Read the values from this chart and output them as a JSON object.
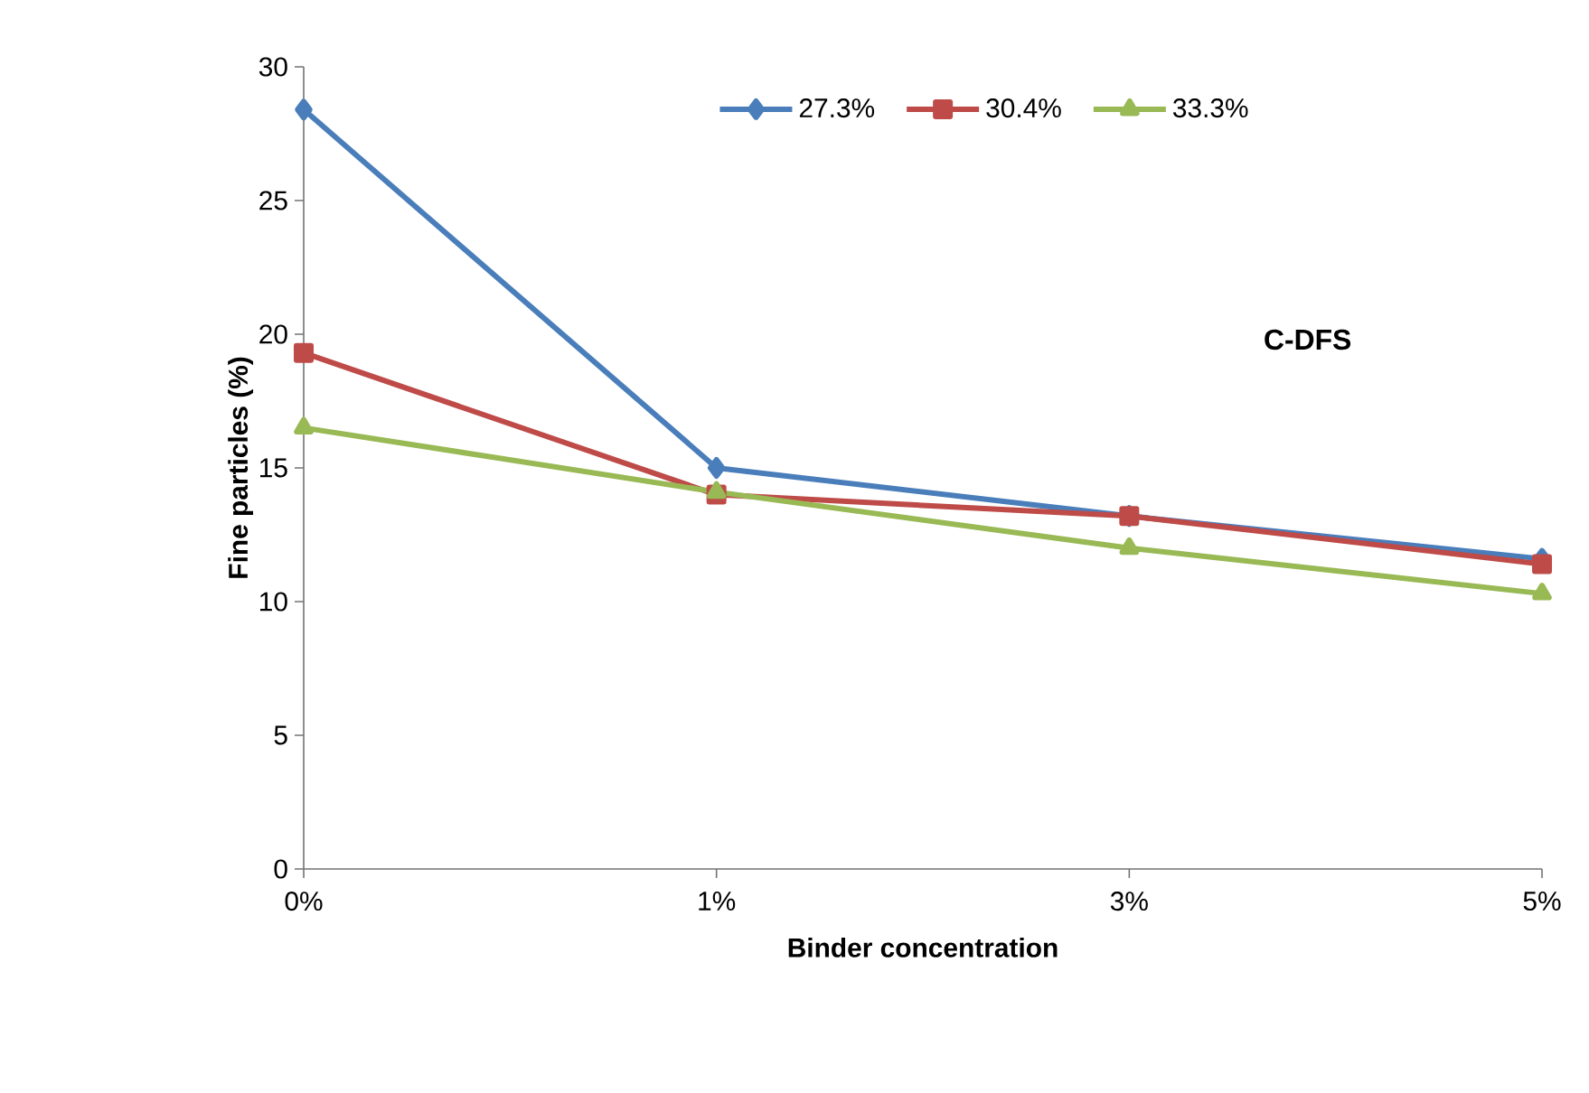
{
  "chart_data": {
    "type": "line",
    "xlabel": "Binder concentration",
    "ylabel": "Fine particles (%)",
    "categories": [
      "0%",
      "1%",
      "3%",
      "5%"
    ],
    "series": [
      {
        "name": "27.3%",
        "color": "#4a7ebb",
        "marker": "diamond",
        "values": [
          28.4,
          15.0,
          13.2,
          11.6
        ]
      },
      {
        "name": "30.4%",
        "color": "#be4b48",
        "marker": "square",
        "values": [
          19.3,
          14.0,
          13.2,
          11.4
        ]
      },
      {
        "name": "33.3%",
        "color": "#98b954",
        "marker": "triangle",
        "values": [
          16.5,
          14.1,
          12.0,
          10.3
        ]
      }
    ],
    "ylim": [
      0,
      30
    ],
    "yticks": [
      0,
      5,
      10,
      15,
      20,
      25,
      30
    ],
    "grid": false,
    "legend": "top",
    "annotations": [
      "C-DFS"
    ]
  }
}
